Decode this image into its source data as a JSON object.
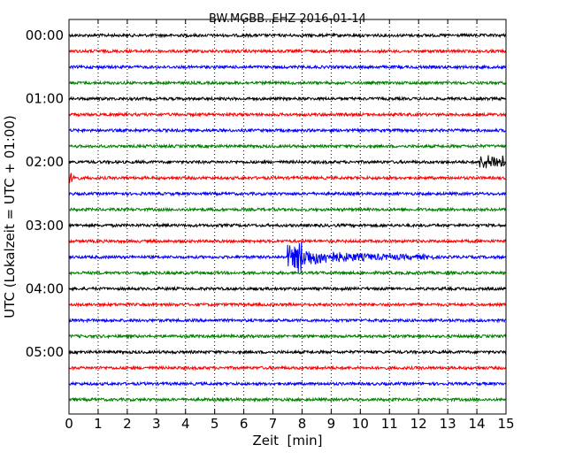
{
  "chart_data": {
    "type": "line",
    "title": "BW.MGBB..EHZ 2016-01-14",
    "xlabel": "Zeit  [min]",
    "ylabel": "UTC (Lokalzeit = UTC + 01:00)",
    "xlim": [
      0,
      15
    ],
    "x_ticks": [
      "0",
      "1",
      "2",
      "3",
      "4",
      "5",
      "6",
      "7",
      "8",
      "9",
      "10",
      "11",
      "12",
      "13",
      "14",
      "15"
    ],
    "y_ticks": [
      "00:00",
      "01:00",
      "02:00",
      "03:00",
      "04:00",
      "05:00"
    ],
    "grid": "vertical dotted",
    "trace_count": 24,
    "trace_interval_min": 15,
    "colors": [
      "#000000",
      "#ff0000",
      "#0000ff",
      "#008000"
    ],
    "events": [
      {
        "row_start": "02:00",
        "x_from": 14.1,
        "x_to": 15.0
      },
      {
        "row_start": "02:15",
        "x_from": 0.0,
        "x_to": 0.4
      },
      {
        "row_start": "03:30",
        "x_from": 7.5,
        "x_to": 12.5
      }
    ]
  }
}
